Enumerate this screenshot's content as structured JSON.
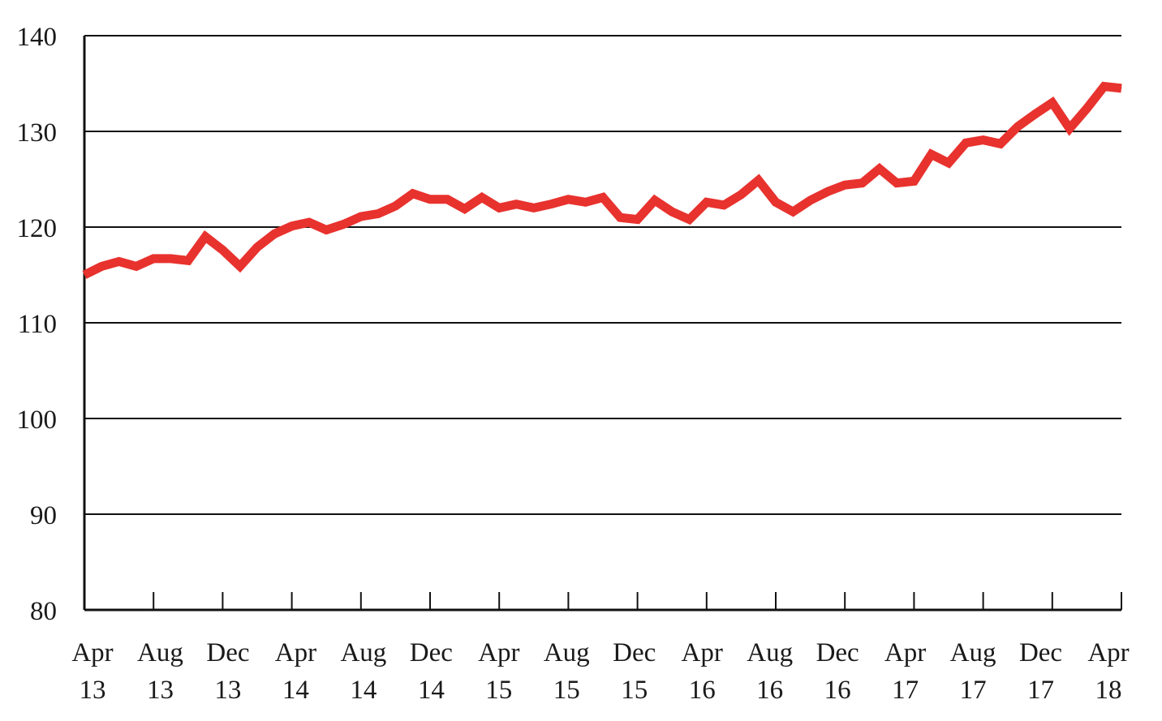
{
  "chart_data": {
    "type": "line",
    "ylim": [
      80,
      140
    ],
    "yticks": [
      "80",
      "90",
      "100",
      "110",
      "120",
      "130",
      "140"
    ],
    "xtick_labels": [
      [
        "Apr",
        "13"
      ],
      [
        "Aug",
        "13"
      ],
      [
        "Dec",
        "13"
      ],
      [
        "Apr",
        "14"
      ],
      [
        "Aug",
        "14"
      ],
      [
        "Dec",
        "14"
      ],
      [
        "Apr",
        "15"
      ],
      [
        "Aug",
        "15"
      ],
      [
        "Dec",
        "15"
      ],
      [
        "Apr",
        "16"
      ],
      [
        "Aug",
        "16"
      ],
      [
        "Dec",
        "16"
      ],
      [
        "Apr",
        "17"
      ],
      [
        "Aug",
        "17"
      ],
      [
        "Dec",
        "17"
      ],
      [
        "Apr",
        "18"
      ]
    ],
    "grid": true,
    "x": [
      "2013-04",
      "2013-05",
      "2013-06",
      "2013-07",
      "2013-08",
      "2013-09",
      "2013-10",
      "2013-11",
      "2013-12",
      "2014-01",
      "2014-02",
      "2014-03",
      "2014-04",
      "2014-05",
      "2014-06",
      "2014-07",
      "2014-08",
      "2014-09",
      "2014-10",
      "2014-11",
      "2014-12",
      "2015-01",
      "2015-02",
      "2015-03",
      "2015-04",
      "2015-05",
      "2015-06",
      "2015-07",
      "2015-08",
      "2015-09",
      "2015-10",
      "2015-11",
      "2015-12",
      "2016-01",
      "2016-02",
      "2016-03",
      "2016-04",
      "2016-05",
      "2016-06",
      "2016-07",
      "2016-08",
      "2016-09",
      "2016-10",
      "2016-11",
      "2016-12",
      "2017-01",
      "2017-02",
      "2017-03",
      "2017-04",
      "2017-05",
      "2017-06",
      "2017-07",
      "2017-08",
      "2017-09",
      "2017-10",
      "2017-11",
      "2017-12",
      "2018-01",
      "2018-02",
      "2018-03",
      "2018-04"
    ],
    "series": [
      {
        "color": "#e8322e",
        "values": [
          115.0,
          115.9,
          116.4,
          115.9,
          116.7,
          116.7,
          116.5,
          119.0,
          117.6,
          115.9,
          117.9,
          119.3,
          120.1,
          120.5,
          119.7,
          120.3,
          121.1,
          121.4,
          122.2,
          123.5,
          122.9,
          122.9,
          121.9,
          123.1,
          122.0,
          122.4,
          122.0,
          122.4,
          122.9,
          122.6,
          123.1,
          121.0,
          120.8,
          122.8,
          121.6,
          120.8,
          122.6,
          122.3,
          123.4,
          124.9,
          122.6,
          121.6,
          122.8,
          123.7,
          124.4,
          124.6,
          126.1,
          124.6,
          124.8,
          127.6,
          126.7,
          128.8,
          129.1,
          128.7,
          130.5,
          131.8,
          133.0,
          130.3,
          132.4,
          134.7,
          134.5
        ]
      }
    ]
  }
}
